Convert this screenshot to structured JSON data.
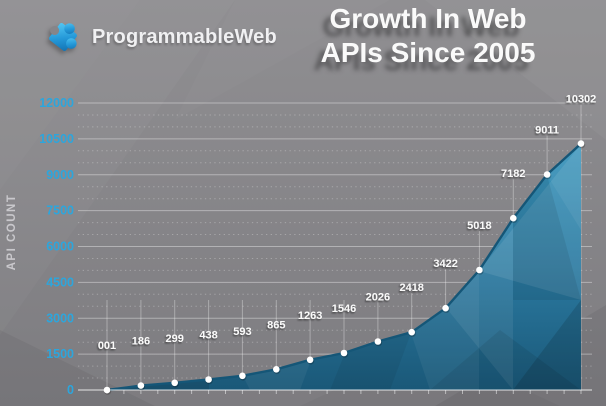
{
  "brand": {
    "name": "ProgrammableWeb",
    "icon": "puzzle-piece-icon"
  },
  "title": {
    "line1": "Growth In Web",
    "line2": "APIs Since 2005"
  },
  "colors": {
    "background": "#868589",
    "axis_label_blue": "#2ca6dd",
    "area_top": "#3d97bd",
    "area_mid": "#2b7aa1",
    "area_bottom": "#1a5878",
    "line": "#155677",
    "marker": "#ffffff",
    "grid": "#ffffff",
    "point_label": "#fafafa",
    "ylabel_gray": "#c9c8cc"
  },
  "chart_data": {
    "type": "area",
    "title": "Growth In Web APIs Since 2005",
    "xlabel": "",
    "ylabel": "API COUNT",
    "ylim": [
      0,
      12000
    ],
    "y_ticks": [
      0,
      1500,
      3000,
      4500,
      6000,
      7500,
      9000,
      10500,
      12000
    ],
    "minor_grid_interval": 500,
    "grid": true,
    "x_axis_labels_visible": false,
    "legend": false,
    "values": [
      1,
      186,
      299,
      438,
      593,
      865,
      1263,
      1546,
      2026,
      2418,
      3422,
      5018,
      7182,
      9011,
      10302
    ],
    "point_labels": [
      "001",
      "186",
      "299",
      "438",
      "593",
      "865",
      "1263",
      "1546",
      "2026",
      "2418",
      "3422",
      "5018",
      "7182",
      "9011",
      "10302"
    ]
  }
}
